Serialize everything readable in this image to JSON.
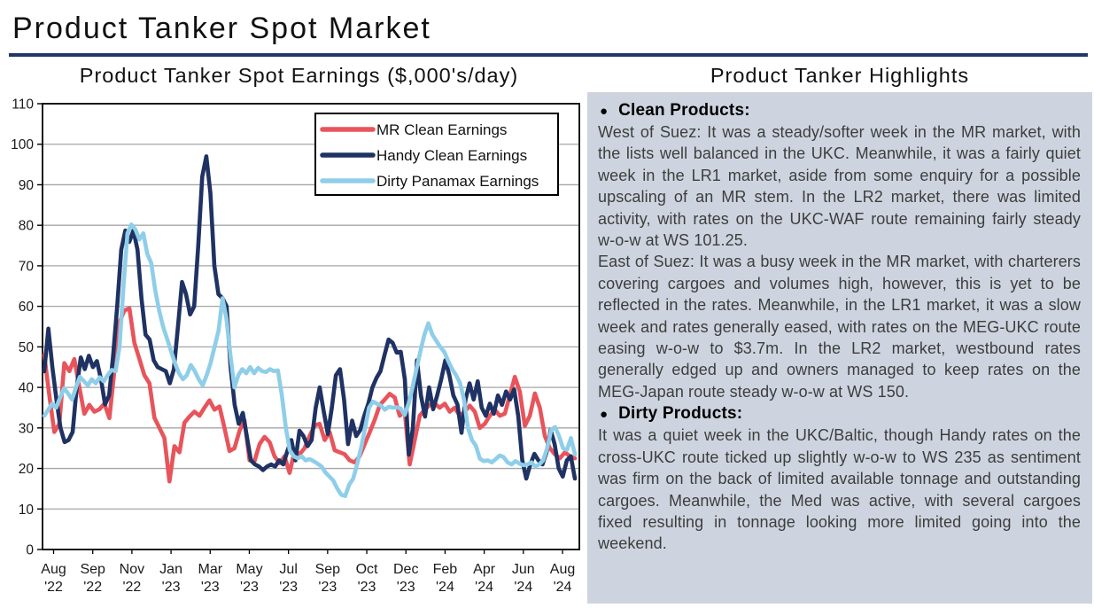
{
  "page": {
    "title": "Product Tanker Spot Market",
    "accent_color": "#1F3864",
    "background_color": "#FFFFFF"
  },
  "chart": {
    "title": "Product Tanker Spot Earnings ($,000's/day)"
  },
  "chart_data": {
    "type": "line",
    "title": "Product Tanker Spot Earnings ($,000's/day)",
    "ylabel": "$,000's/day",
    "ylim": [
      0,
      110
    ],
    "y_ticks": [
      0,
      10,
      20,
      30,
      40,
      50,
      60,
      70,
      80,
      90,
      100,
      110
    ],
    "grid": true,
    "legend_position": "top-right-inside",
    "x_unit": "weekly values, Aug 2022 - Aug 2024",
    "x_tick_labels": [
      {
        "month": "Aug",
        "year": "'22"
      },
      {
        "month": "Sep",
        "year": "'22"
      },
      {
        "month": "Nov",
        "year": "'22"
      },
      {
        "month": "Jan",
        "year": "'23"
      },
      {
        "month": "Mar",
        "year": "'23"
      },
      {
        "month": "May",
        "year": "'23"
      },
      {
        "month": "Jul",
        "year": "'23"
      },
      {
        "month": "Sep",
        "year": "'23"
      },
      {
        "month": "Oct",
        "year": "'23"
      },
      {
        "month": "Dec",
        "year": "'23"
      },
      {
        "month": "Feb",
        "year": "'24"
      },
      {
        "month": "Apr",
        "year": "'24"
      },
      {
        "month": "Jun",
        "year": "'24"
      },
      {
        "month": "Aug",
        "year": "'24"
      }
    ],
    "series": [
      {
        "name": "MR Clean Earnings",
        "color": "#E8545B",
        "values": [
          48,
          38,
          29,
          31,
          46,
          44,
          47,
          40,
          33.5,
          35.7,
          34,
          34.6,
          36,
          32.4,
          44,
          56,
          59,
          59.5,
          51,
          47,
          43,
          41,
          32.5,
          30,
          27.5,
          16.8,
          25.5,
          24,
          31.3,
          32.8,
          34,
          33,
          35,
          36.8,
          34.5,
          35.3,
          30,
          24.3,
          25,
          29.3,
          31.9,
          22,
          21.8,
          26,
          27.8,
          26.5,
          23,
          21.3,
          23,
          18.9,
          24.3,
          23.5,
          25,
          28,
          30.6,
          31,
          27,
          29,
          24.5,
          24,
          23.5,
          22,
          21.5,
          23,
          26,
          28.9,
          32,
          35.6,
          37,
          38.4,
          37.5,
          33,
          34,
          21,
          27,
          33,
          34.5,
          35.7,
          36,
          35,
          36,
          34,
          35,
          33,
          34,
          35.5,
          34,
          30,
          31,
          33,
          34.5,
          33,
          33.5,
          38,
          42.6,
          39,
          30.5,
          33,
          38.5,
          35,
          28,
          25,
          23.5,
          22.5,
          24,
          23,
          22.5
        ]
      },
      {
        "name": "Handy Clean Earnings",
        "color": "#1F3263",
        "values": [
          44,
          54.5,
          45,
          37,
          30,
          26.5,
          27,
          29,
          40,
          47.4,
          44.5,
          47.8,
          45,
          46.5,
          42,
          35.8,
          38,
          47.8,
          60,
          74,
          78.7,
          75.9,
          78.7,
          74,
          62,
          53,
          51.8,
          46.7,
          45,
          44.5,
          44,
          41,
          44.5,
          55,
          66,
          63,
          58,
          60,
          75,
          92,
          97,
          88,
          70,
          63,
          62,
          60,
          45,
          35.7,
          31,
          33.7,
          28,
          22,
          21,
          20.5,
          19.6,
          20.5,
          21,
          20.5,
          22,
          21,
          24.3,
          27,
          22,
          29.3,
          28,
          25.5,
          27,
          35,
          40,
          34,
          28.5,
          35,
          43,
          44.5,
          37,
          26,
          31.8,
          28,
          29.5,
          33,
          36,
          40,
          42.3,
          44,
          48,
          51.8,
          51,
          48.6,
          48.8,
          42,
          23.4,
          30,
          46.7,
          38,
          32.8,
          40,
          34.6,
          38,
          42,
          46.7,
          43,
          38,
          35.8,
          28.8,
          37,
          41,
          37,
          41.5,
          35,
          33,
          36,
          33.5,
          38,
          35.7,
          39,
          37,
          39.5,
          33,
          22,
          17.5,
          21,
          23.6,
          22,
          21,
          24,
          29.5,
          26,
          20,
          18,
          22,
          23,
          17.5
        ]
      },
      {
        "name": "Dirty Panamax Earnings",
        "color": "#8FCEE9",
        "values": [
          33,
          34.5,
          36,
          35,
          37.5,
          39.8,
          38.5,
          37,
          40,
          42.6,
          41.5,
          40.5,
          42,
          41,
          42.5,
          41.5,
          43,
          44.3,
          44,
          50,
          65,
          78,
          80.2,
          79,
          76.5,
          78,
          73,
          70.7,
          64,
          59,
          55,
          52,
          49,
          46,
          43.5,
          42,
          43,
          45.5,
          44,
          42,
          40.5,
          43,
          46,
          50,
          54,
          62,
          57,
          48,
          40,
          43,
          44.5,
          43.5,
          45,
          43.5,
          44.8,
          44,
          43.8,
          44.5,
          44,
          44.2,
          38,
          30,
          24.5,
          23,
          22.5,
          23,
          22,
          22.3,
          21.8,
          21.2,
          20.5,
          19,
          18,
          17,
          15,
          13.5,
          13.2,
          16,
          17.5,
          21,
          25,
          30,
          35,
          36.5,
          36,
          35.5,
          34.5,
          35.2,
          35,
          35.1,
          34.8,
          33.2,
          36,
          40,
          44.6,
          49,
          53,
          55.8,
          53,
          51.5,
          50,
          48.8,
          46.5,
          44.5,
          43,
          41,
          37,
          30,
          27,
          25.6,
          22.4,
          21.8,
          22,
          21.5,
          22.3,
          23.2,
          22.8,
          21.5,
          21,
          21.8,
          21.2,
          20.8,
          21,
          21.5,
          20.5,
          21,
          22,
          25,
          29.5,
          30.2,
          28,
          25,
          24.6,
          27.5,
          23.5
        ]
      }
    ]
  },
  "highlights": {
    "title": "Product Tanker Highlights",
    "panel_color": "#CED4DF",
    "sections": [
      {
        "heading": "Clean Products:",
        "paragraphs": [
          "West of Suez: It was a steady/softer week in the MR market, with the lists well balanced in the UKC. Meanwhile, it was a fairly quiet week in the LR1 market, aside from some enquiry for a possible upscaling of an MR stem. In the LR2 market, there was limited activity, with rates on the UKC-WAF route remaining fairly steady w-o-w at WS 101.25.",
          "East of Suez: It was a busy week in the MR market, with charterers covering cargoes and volumes high, however, this is yet to be reflected in the rates. Meanwhile, in the LR1 market, it was a slow week and rates generally eased, with rates on the MEG-UKC route easing w-o-w to $3.7m. In the LR2 market, westbound rates generally edged up and owners managed to keep rates on the MEG-Japan route steady w-o-w at WS 150."
        ]
      },
      {
        "heading": "Dirty Products:",
        "paragraphs": [
          "It was a quiet week in the UKC/Baltic, though Handy rates on the cross-UKC route ticked up slightly w-o-w to WS 235 as sentiment was firm on the back of limited available tonnage and outstanding cargoes. Meanwhile, the Med was active, with several cargoes fixed resulting in tonnage looking more limited going into the weekend."
        ]
      }
    ]
  }
}
